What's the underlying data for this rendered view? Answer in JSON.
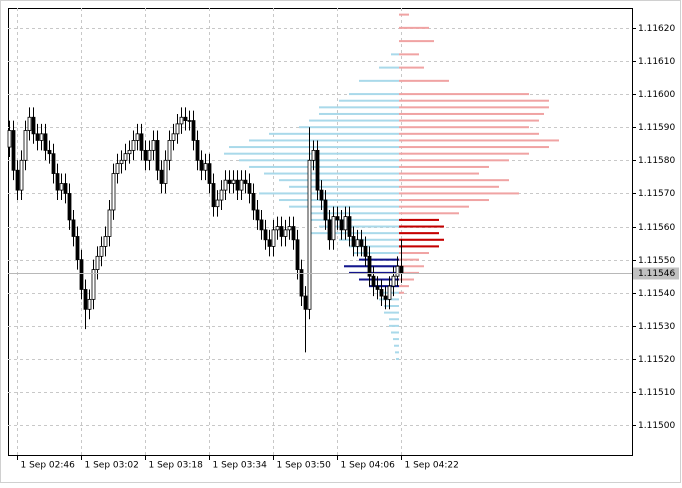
{
  "chart_data": [
    {
      "type": "candlestick",
      "categories": [
        null,
        null,
        "1 Sep 02:46",
        null,
        null,
        null,
        null,
        null,
        null,
        null,
        null,
        null,
        null,
        null,
        null,
        null,
        null,
        null,
        "1 Sep 03:02",
        null,
        null,
        null,
        null,
        null,
        null,
        null,
        null,
        null,
        null,
        null,
        null,
        null,
        null,
        null,
        "1 Sep 03:18",
        null,
        null,
        null,
        null,
        null,
        null,
        null,
        null,
        null,
        null,
        null,
        null,
        null,
        null,
        null,
        "1 Sep 03:34",
        null,
        null,
        null,
        null,
        null,
        null,
        null,
        null,
        null,
        null,
        null,
        null,
        null,
        null,
        null,
        "1 Sep 03:50",
        null,
        null,
        null,
        null,
        null,
        null,
        null,
        null,
        null,
        null,
        null,
        null,
        null,
        null,
        null,
        "1 Sep 04:06",
        null,
        null,
        null,
        null,
        null,
        null,
        null,
        null,
        null,
        null,
        null,
        null,
        null,
        null,
        null,
        "1 Sep 04:22"
      ],
      "open": [
        1.11584,
        1.11589,
        1.11577,
        1.11571,
        1.1158,
        1.11589,
        1.11593,
        1.11588,
        1.11586,
        1.11588,
        1.11583,
        1.11582,
        1.11576,
        1.11571,
        1.11573,
        1.1157,
        1.11562,
        1.11557,
        1.1155,
        1.11541,
        1.11535,
        1.11538,
        1.11547,
        1.11551,
        1.11554,
        1.11557,
        1.11565,
        1.11576,
        1.11579,
        1.1158,
        1.11582,
        1.11583,
        1.11586,
        1.11588,
        1.11583,
        1.1158,
        1.11583,
        1.11586,
        1.11577,
        1.11573,
        1.1158,
        1.11586,
        1.11588,
        1.11591,
        1.11593,
        1.11592,
        1.11592,
        1.11586,
        1.1158,
        1.11577,
        1.11579,
        1.11573,
        1.11566,
        1.11568,
        1.11571,
        1.11574,
        1.11573,
        1.11574,
        1.11571,
        1.11574,
        1.11573,
        1.1157,
        1.11565,
        1.11562,
        1.11559,
        1.11556,
        1.11554,
        1.11559,
        1.1156,
        1.11557,
        1.11559,
        1.1156,
        1.11556,
        1.11547,
        1.11539,
        1.11535,
        1.1158,
        1.11583,
        1.11571,
        1.11568,
        1.11562,
        1.11556,
        1.11563,
        1.11562,
        1.11559,
        1.11563,
        1.11557,
        1.11554,
        1.11556,
        1.11554,
        1.11551,
        1.11545,
        1.11542,
        1.11541,
        1.11539,
        1.11538,
        1.11542,
        1.11545,
        1.11548
      ],
      "high": [
        1.11592,
        1.11592,
        1.1158,
        1.11583,
        1.11592,
        1.11596,
        1.11596,
        1.11591,
        1.11591,
        1.11591,
        1.11586,
        1.11585,
        1.11579,
        1.11576,
        1.11576,
        1.11573,
        1.11565,
        1.1156,
        1.11553,
        1.11544,
        1.11541,
        1.1155,
        1.11554,
        1.11557,
        1.1156,
        1.11568,
        1.11579,
        1.11582,
        1.11583,
        1.11585,
        1.11586,
        1.11589,
        1.11591,
        1.11591,
        1.11586,
        1.11586,
        1.11589,
        1.11589,
        1.1158,
        1.11583,
        1.11589,
        1.11591,
        1.11594,
        1.11596,
        1.11596,
        1.11595,
        1.11595,
        1.11589,
        1.11583,
        1.11582,
        1.11582,
        1.11576,
        1.11571,
        1.11574,
        1.11577,
        1.11577,
        1.11577,
        1.11577,
        1.11577,
        1.11577,
        1.11576,
        1.11573,
        1.11568,
        1.11565,
        1.11562,
        1.11559,
        1.11562,
        1.11563,
        1.11563,
        1.11562,
        1.11563,
        1.11563,
        1.11559,
        1.1155,
        1.11542,
        1.1159,
        1.11586,
        1.11586,
        1.11574,
        1.11571,
        1.11565,
        1.11566,
        1.11566,
        1.11565,
        1.11566,
        1.11566,
        1.1156,
        1.11559,
        1.11559,
        1.11557,
        1.11554,
        1.11548,
        1.11545,
        1.11544,
        1.11542,
        1.11545,
        1.11548,
        1.11551,
        1.11556
      ],
      "low": [
        1.11581,
        1.11574,
        1.11568,
        1.11568,
        1.11577,
        1.11586,
        1.11585,
        1.11583,
        1.11583,
        1.1158,
        1.11579,
        1.11573,
        1.11568,
        1.11568,
        1.11567,
        1.11559,
        1.11554,
        1.11547,
        1.11538,
        1.11529,
        1.11532,
        1.11535,
        1.11544,
        1.11548,
        1.11551,
        1.11554,
        1.11562,
        1.11573,
        1.11576,
        1.11577,
        1.11579,
        1.1158,
        1.11583,
        1.1158,
        1.11577,
        1.11577,
        1.1158,
        1.11574,
        1.1157,
        1.1157,
        1.11577,
        1.11583,
        1.11585,
        1.11588,
        1.11589,
        1.11589,
        1.11583,
        1.11577,
        1.11574,
        1.11574,
        1.1157,
        1.11563,
        1.11563,
        1.11565,
        1.11568,
        1.1157,
        1.1157,
        1.11568,
        1.11568,
        1.1157,
        1.11567,
        1.11562,
        1.11559,
        1.11556,
        1.11553,
        1.11551,
        1.11551,
        1.11556,
        1.11554,
        1.11554,
        1.11556,
        1.11553,
        1.11544,
        1.11536,
        1.11522,
        1.11532,
        1.11577,
        1.11568,
        1.11565,
        1.11559,
        1.11553,
        1.11553,
        1.11559,
        1.11556,
        1.11556,
        1.11554,
        1.11551,
        1.11551,
        1.11551,
        1.11548,
        1.11542,
        1.11539,
        1.11538,
        1.11536,
        1.11535,
        1.11535,
        1.11539,
        1.11542,
        1.11543
      ],
      "close": [
        1.11589,
        1.11577,
        1.11571,
        1.1158,
        1.11589,
        1.11593,
        1.11588,
        1.11586,
        1.11588,
        1.11583,
        1.11582,
        1.11576,
        1.11571,
        1.11573,
        1.1157,
        1.11562,
        1.11557,
        1.1155,
        1.11541,
        1.11535,
        1.11538,
        1.11547,
        1.11551,
        1.11554,
        1.11557,
        1.11565,
        1.11576,
        1.11579,
        1.1158,
        1.11582,
        1.11583,
        1.11586,
        1.11588,
        1.11583,
        1.1158,
        1.11583,
        1.11586,
        1.11577,
        1.11573,
        1.1158,
        1.11586,
        1.11588,
        1.11591,
        1.11593,
        1.11592,
        1.11592,
        1.11586,
        1.1158,
        1.11577,
        1.11579,
        1.11573,
        1.11566,
        1.11568,
        1.11571,
        1.11574,
        1.11573,
        1.11574,
        1.11571,
        1.11574,
        1.11573,
        1.1157,
        1.11565,
        1.11562,
        1.11559,
        1.11556,
        1.11554,
        1.11559,
        1.1156,
        1.11557,
        1.11559,
        1.1156,
        1.11556,
        1.11547,
        1.11539,
        1.11535,
        1.1158,
        1.11583,
        1.11571,
        1.11568,
        1.11562,
        1.11556,
        1.11563,
        1.11562,
        1.11559,
        1.11563,
        1.11557,
        1.11554,
        1.11556,
        1.11554,
        1.11551,
        1.11545,
        1.11542,
        1.11541,
        1.11539,
        1.11538,
        1.11542,
        1.11545,
        1.11548,
        1.11546
      ],
      "up_color": "#ffffff",
      "down_color": "#000000",
      "line_color": "#000000",
      "ylim": [
        1.11491,
        1.11626
      ],
      "yticks": [
        {
          "value": 1.115,
          "label": "1.11500"
        },
        {
          "value": 1.1151,
          "label": "1.11510"
        },
        {
          "value": 1.1152,
          "label": "1.11520"
        },
        {
          "value": 1.1153,
          "label": "1.11530"
        },
        {
          "value": 1.1154,
          "label": "1.11540"
        },
        {
          "value": 1.1155,
          "label": "1.11550"
        },
        {
          "value": 1.1156,
          "label": "1.11560"
        },
        {
          "value": 1.1157,
          "label": "1.11570"
        },
        {
          "value": 1.1158,
          "label": "1.11580"
        },
        {
          "value": 1.1159,
          "label": "1.11590"
        },
        {
          "value": 1.116,
          "label": "1.11600"
        },
        {
          "value": 1.1161,
          "label": "1.11610"
        },
        {
          "value": 1.1162,
          "label": "1.11620"
        }
      ],
      "last_price": {
        "value": 1.11546,
        "label": "1.11546"
      },
      "grid": true
    },
    {
      "type": "profile",
      "levels": [
        1.11624,
        1.1162,
        1.11616,
        1.11612,
        1.11608,
        1.11604,
        1.116,
        1.11598,
        1.11596,
        1.11594,
        1.11592,
        1.1159,
        1.11588,
        1.11586,
        1.11584,
        1.11582,
        1.1158,
        1.11578,
        1.11576,
        1.11574,
        1.11572,
        1.1157,
        1.11568,
        1.11566,
        1.11564,
        1.11562,
        1.1156,
        1.11558,
        1.11556,
        1.11554,
        1.11552,
        1.1155,
        1.11548,
        1.11546,
        1.11544,
        1.11542,
        1.1154,
        1.11538,
        1.11536,
        1.11534,
        1.11532,
        1.1153,
        1.11528,
        1.11526,
        1.11524,
        1.11522,
        1.1152
      ],
      "series": [
        {
          "color": "#a9d9ea",
          "side": "left",
          "values": [
            null,
            null,
            null,
            8,
            20,
            40,
            50,
            60,
            80,
            80,
            90,
            100,
            130,
            150,
            170,
            175,
            160,
            150,
            135,
            120,
            110,
            140,
            120,
            110,
            90,
            90,
            80,
            90,
            60,
            50,
            45,
            40,
            55,
            50,
            40,
            30,
            20,
            20,
            15,
            15,
            10,
            10,
            8,
            6,
            5,
            4,
            3
          ]
        },
        {
          "color": "#f0a3a3",
          "side": "right",
          "values": [
            10,
            30,
            35,
            20,
            25,
            50,
            130,
            150,
            150,
            145,
            140,
            130,
            140,
            160,
            150,
            130,
            110,
            90,
            80,
            110,
            100,
            120,
            90,
            70,
            60,
            40,
            45,
            40,
            45,
            40,
            30,
            20,
            25,
            20,
            15,
            10,
            5,
            null,
            null,
            null,
            null,
            null,
            null,
            null,
            null,
            null,
            null
          ]
        },
        {
          "color": "#14148c",
          "side": "left",
          "values": [
            null,
            null,
            null,
            null,
            null,
            null,
            null,
            null,
            null,
            null,
            null,
            null,
            null,
            null,
            null,
            null,
            null,
            null,
            null,
            null,
            null,
            null,
            null,
            null,
            null,
            null,
            null,
            null,
            null,
            null,
            null,
            40,
            55,
            50,
            40,
            30,
            null,
            null,
            null,
            null,
            null,
            null,
            null,
            null,
            null,
            null,
            null
          ]
        },
        {
          "color": "#c40000",
          "side": "right",
          "values": [
            null,
            null,
            null,
            null,
            null,
            null,
            null,
            null,
            null,
            null,
            null,
            null,
            null,
            null,
            null,
            null,
            null,
            null,
            null,
            null,
            null,
            null,
            null,
            null,
            null,
            40,
            45,
            40,
            45,
            40,
            null,
            null,
            null,
            null,
            null,
            null,
            null,
            null,
            null,
            null,
            null,
            null,
            null,
            null,
            null,
            null,
            null
          ]
        }
      ]
    }
  ]
}
